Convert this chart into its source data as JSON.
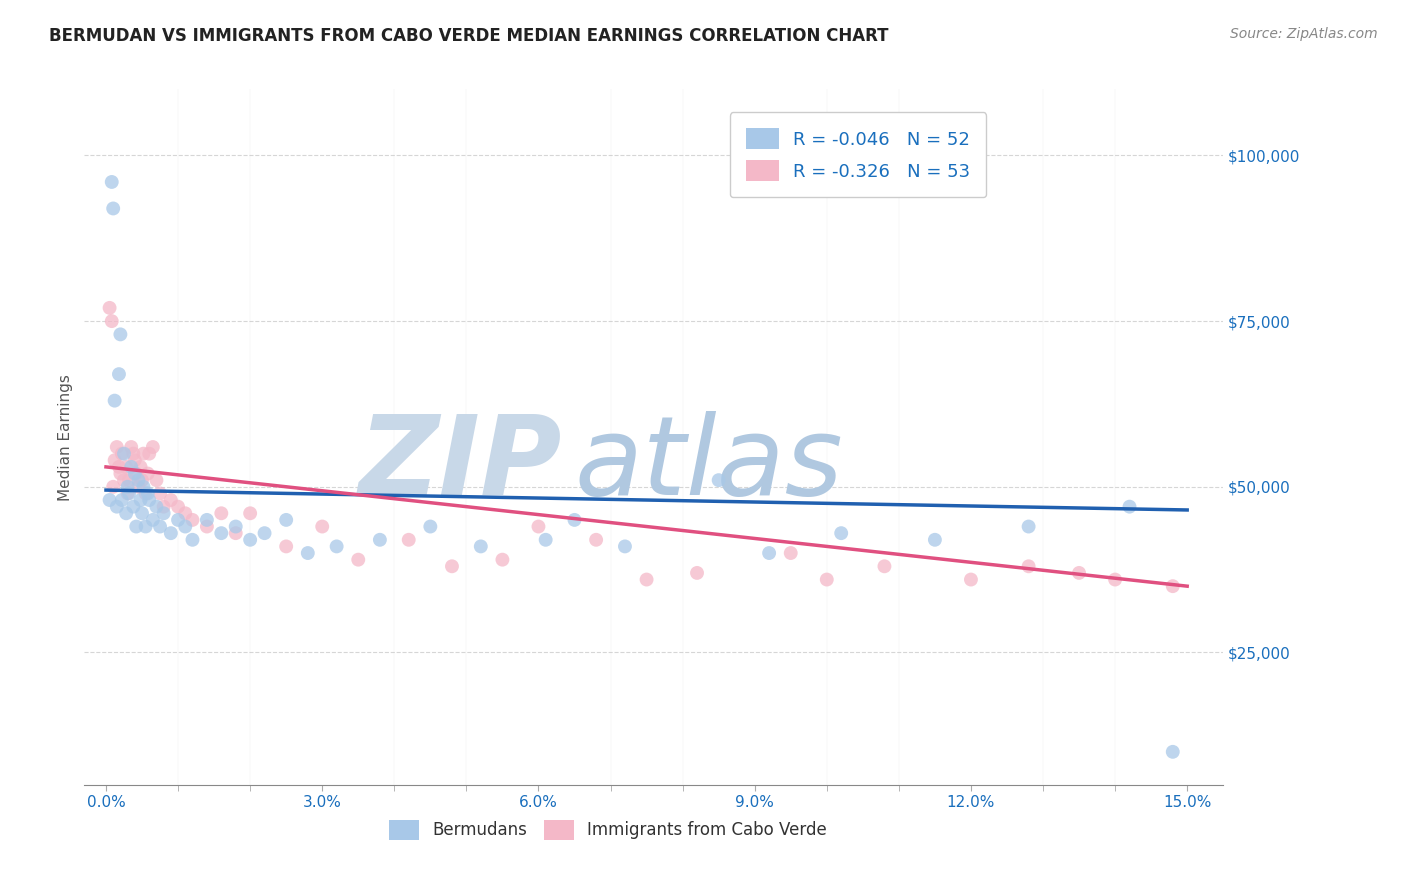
{
  "title": "BERMUDAN VS IMMIGRANTS FROM CABO VERDE MEDIAN EARNINGS CORRELATION CHART",
  "source": "Source: ZipAtlas.com",
  "xlabel_vals": [
    0.0,
    3.0,
    6.0,
    9.0,
    12.0,
    15.0
  ],
  "ylabel_ticks": [
    "$25,000",
    "$50,000",
    "$75,000",
    "$100,000"
  ],
  "ylabel_vals": [
    25000,
    50000,
    75000,
    100000
  ],
  "xlim": [
    -0.3,
    15.5
  ],
  "ylim": [
    5000,
    110000
  ],
  "ylabel": "Median Earnings",
  "legend_label1": "Bermudans",
  "legend_label2": "Immigrants from Cabo Verde",
  "R1": -0.046,
  "N1": 52,
  "R2": -0.326,
  "N2": 53,
  "color_blue": "#a8c8e8",
  "color_pink": "#f4b8c8",
  "line_color_blue": "#2060b0",
  "line_color_pink": "#e05080",
  "watermark_color": "#d0dff0",
  "background_color": "#ffffff",
  "grid_color": "#cccccc",
  "title_color": "#222222",
  "axis_label_color": "#1a6fbd",
  "source_color": "#888888",
  "blue_x": [
    0.05,
    0.08,
    0.1,
    0.12,
    0.15,
    0.18,
    0.2,
    0.22,
    0.25,
    0.28,
    0.3,
    0.32,
    0.35,
    0.38,
    0.4,
    0.42,
    0.45,
    0.48,
    0.5,
    0.52,
    0.55,
    0.58,
    0.6,
    0.65,
    0.7,
    0.75,
    0.8,
    0.9,
    1.0,
    1.1,
    1.2,
    1.4,
    1.6,
    1.8,
    2.0,
    2.2,
    2.5,
    2.8,
    3.2,
    3.8,
    4.5,
    5.2,
    6.1,
    6.5,
    7.2,
    8.5,
    9.2,
    10.2,
    11.5,
    12.8,
    14.2,
    14.8
  ],
  "blue_y": [
    48000,
    96000,
    92000,
    63000,
    47000,
    67000,
    73000,
    48000,
    55000,
    46000,
    50000,
    49000,
    53000,
    47000,
    52000,
    44000,
    51000,
    48000,
    46000,
    50000,
    44000,
    49000,
    48000,
    45000,
    47000,
    44000,
    46000,
    43000,
    45000,
    44000,
    42000,
    45000,
    43000,
    44000,
    42000,
    43000,
    45000,
    40000,
    41000,
    42000,
    44000,
    41000,
    42000,
    45000,
    41000,
    51000,
    40000,
    43000,
    42000,
    44000,
    47000,
    10000
  ],
  "pink_x": [
    0.05,
    0.08,
    0.1,
    0.12,
    0.15,
    0.18,
    0.2,
    0.22,
    0.25,
    0.28,
    0.3,
    0.32,
    0.35,
    0.38,
    0.4,
    0.42,
    0.45,
    0.48,
    0.5,
    0.52,
    0.55,
    0.58,
    0.6,
    0.65,
    0.7,
    0.75,
    0.8,
    0.9,
    1.0,
    1.1,
    1.2,
    1.4,
    1.6,
    1.8,
    2.0,
    2.5,
    3.0,
    3.5,
    4.2,
    4.8,
    5.5,
    6.0,
    6.8,
    7.5,
    8.2,
    9.5,
    10.0,
    10.8,
    12.0,
    12.8,
    13.5,
    14.0,
    14.8
  ],
  "pink_y": [
    77000,
    75000,
    50000,
    54000,
    56000,
    53000,
    52000,
    55000,
    51000,
    53000,
    49000,
    51000,
    56000,
    55000,
    54000,
    52000,
    50000,
    53000,
    51000,
    55000,
    49000,
    52000,
    55000,
    56000,
    51000,
    49000,
    47000,
    48000,
    47000,
    46000,
    45000,
    44000,
    46000,
    43000,
    46000,
    41000,
    44000,
    39000,
    42000,
    38000,
    39000,
    44000,
    42000,
    36000,
    37000,
    40000,
    36000,
    38000,
    36000,
    38000,
    37000,
    36000,
    35000
  ],
  "line_blue_x0": 0.0,
  "line_blue_x1": 15.0,
  "line_blue_y0": 49500,
  "line_blue_y1": 46500,
  "line_pink_x0": 0.0,
  "line_pink_x1": 15.0,
  "line_pink_y0": 53000,
  "line_pink_y1": 35000
}
